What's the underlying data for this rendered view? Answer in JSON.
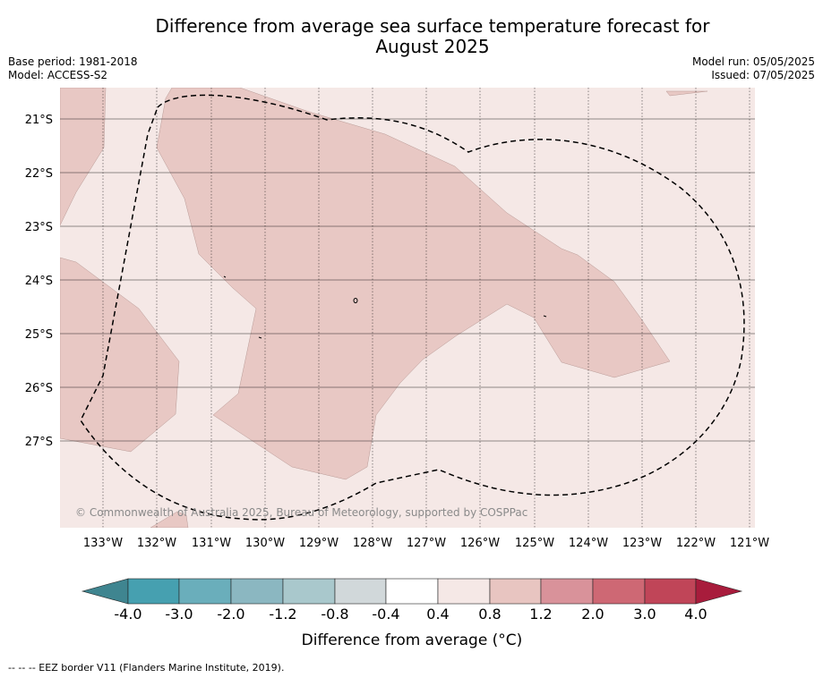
{
  "header": {
    "title_line1": "Difference from average sea surface temperature forecast for",
    "title_line2": "August 2025",
    "base_period": "Base period: 1981-2018",
    "model": "Model: ACCESS-S2",
    "model_run": "Model run: 05/05/2025",
    "issued": "Issued: 07/05/2025"
  },
  "map": {
    "lat_labels": [
      "21°S",
      "22°S",
      "23°S",
      "24°S",
      "25°S",
      "26°S",
      "27°S"
    ],
    "lon_labels": [
      "133°W",
      "132°W",
      "131°W",
      "130°W",
      "129°W",
      "128°W",
      "127°W",
      "126°W",
      "125°W",
      "124°W",
      "123°W",
      "122°W",
      "121°W"
    ],
    "copyright": "© Commonwealth of Australia 2025, Bureau of Meteorology, supported by COSPPac",
    "colors": {
      "background_anomaly": "#f5e8e6",
      "warm_anomaly": "#e8c8c4"
    }
  },
  "colorbar": {
    "ticks": [
      "-4.0",
      "-3.0",
      "-2.0",
      "-1.2",
      "-0.8",
      "-0.4",
      "0.4",
      "0.8",
      "1.2",
      "2.0",
      "3.0",
      "4.0"
    ],
    "colors": [
      "#3f8590",
      "#46a0b0",
      "#6aaebb",
      "#8bb7c1",
      "#a9c8cc",
      "#d1d8da",
      "#ffffff",
      "#f5e8e6",
      "#e8c5c1",
      "#d9929a",
      "#ce6874",
      "#c04558",
      "#a81c3c"
    ],
    "label": "Difference from average (°C)"
  },
  "footnote": "-- -- -- EEZ border V11 (Flanders Marine Institute, 2019)."
}
